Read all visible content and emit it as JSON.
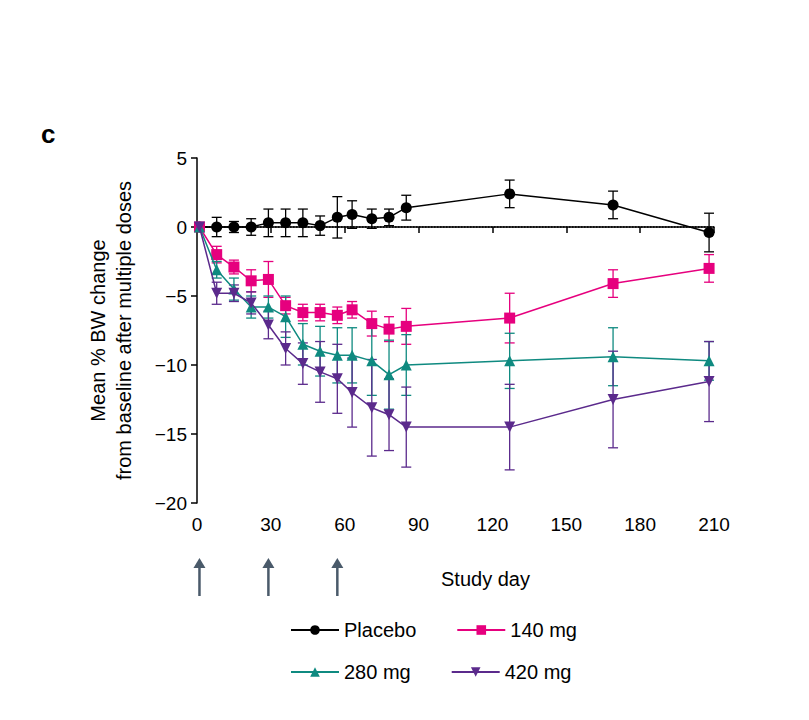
{
  "chart_data": {
    "type": "line",
    "title": "c",
    "x_label": "Study day",
    "y_label": "Mean % BW change\nfrom baseline after multiple doses",
    "xlim": [
      0,
      210
    ],
    "xticks": [
      0,
      30,
      60,
      90,
      120,
      150,
      180,
      210
    ],
    "ylim": [
      -20,
      5
    ],
    "yticks": [
      {
        "value": -20,
        "label": "−20"
      },
      {
        "value": -15,
        "label": "−15"
      },
      {
        "value": -10,
        "label": "−10"
      },
      {
        "value": -5,
        "label": "−5"
      },
      0,
      5
    ],
    "x": [
      1,
      8,
      15,
      22,
      29,
      36,
      43,
      50,
      57,
      63,
      71,
      78,
      85,
      127,
      169,
      208
    ],
    "dose_days": [
      1,
      29,
      57
    ],
    "reference_lines": [
      {
        "y": 0,
        "line_style": "dotted"
      }
    ],
    "grid": false,
    "legend": "bottom",
    "series": [
      {
        "name": "Placebo",
        "color": "#000000",
        "marker": "circle",
        "values": [
          0,
          0,
          0,
          0,
          0.3,
          0.3,
          0.3,
          0.1,
          0.7,
          0.9,
          0.6,
          0.7,
          1.4,
          2.4,
          1.6,
          -0.4
        ],
        "errors": [
          0,
          0.7,
          0.4,
          0.6,
          1.0,
          1.0,
          1.0,
          0.7,
          1.5,
          1.0,
          0.7,
          0.6,
          0.9,
          1.0,
          1.0,
          1.4
        ]
      },
      {
        "name": "140 mg",
        "color": "#e6007e",
        "marker": "square",
        "values": [
          0,
          -2.0,
          -2.9,
          -3.9,
          -3.8,
          -5.7,
          -6.2,
          -6.2,
          -6.4,
          -6.0,
          -7.0,
          -7.4,
          -7.2,
          -6.6,
          -4.1,
          -3.0
        ],
        "errors": [
          0,
          0.6,
          0.5,
          0.8,
          1.3,
          0.6,
          0.6,
          0.6,
          0.6,
          0.6,
          0.9,
          0.9,
          1.3,
          1.8,
          1.0,
          1.0
        ]
      },
      {
        "name": "280 mg",
        "color": "#0f8a80",
        "marker": "triangle",
        "values": [
          0,
          -3.1,
          -4.5,
          -5.8,
          -5.8,
          -6.5,
          -8.5,
          -9.0,
          -9.3,
          -9.3,
          -9.7,
          -10.7,
          -10.0,
          -9.7,
          -9.4,
          -9.7
        ],
        "errors": [
          0,
          0.6,
          0.8,
          0.8,
          0.8,
          1.5,
          1.5,
          1.8,
          2.0,
          2.0,
          2.5,
          2.5,
          2.2,
          2.0,
          2.1,
          1.4
        ]
      },
      {
        "name": "420 mg",
        "color": "#5b2a8c",
        "marker": "triangle-down",
        "values": [
          0,
          -4.8,
          -4.8,
          -5.5,
          -7.1,
          -8.8,
          -9.9,
          -10.5,
          -11.0,
          -12.0,
          -13.1,
          -13.6,
          -14.5,
          -14.5,
          -12.5,
          -11.2
        ],
        "errors": [
          0,
          0.8,
          0.6,
          0.8,
          1.0,
          1.2,
          1.5,
          2.2,
          2.5,
          2.5,
          3.5,
          2.6,
          2.9,
          3.1,
          3.5,
          2.9
        ]
      }
    ]
  }
}
